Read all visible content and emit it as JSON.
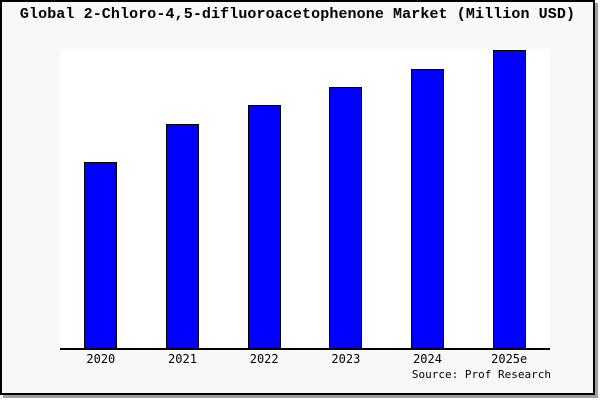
{
  "chart": {
    "title": "Global 2-Chloro-4,5-difluoroacetophenone Market (Million USD)",
    "source": "Source: Prof Research"
  },
  "chart_data": {
    "type": "bar",
    "title": "Global 2-Chloro-4,5-difluoroacetophenone Market (Million USD)",
    "categories": [
      "2020",
      "2021",
      "2022",
      "2023",
      "2024",
      "2025e"
    ],
    "values": [
      62.4,
      74.9,
      81.2,
      87.2,
      93.3,
      99.6
    ],
    "unit": "relative height (y-axis unlabeled in image)",
    "xlabel": "",
    "ylabel": "",
    "ylim": [
      0,
      100
    ],
    "grid": false,
    "legend": false,
    "bar_color": "#0000ff",
    "bar_border_color": "#000000"
  },
  "colors": {
    "figure_bg": "#f8f8f8",
    "plot_bg": "#ffffff",
    "frame_border": "#000000",
    "frame_shadow": "#9e9e9e",
    "axis_line": "#000000",
    "text": "#000000"
  }
}
